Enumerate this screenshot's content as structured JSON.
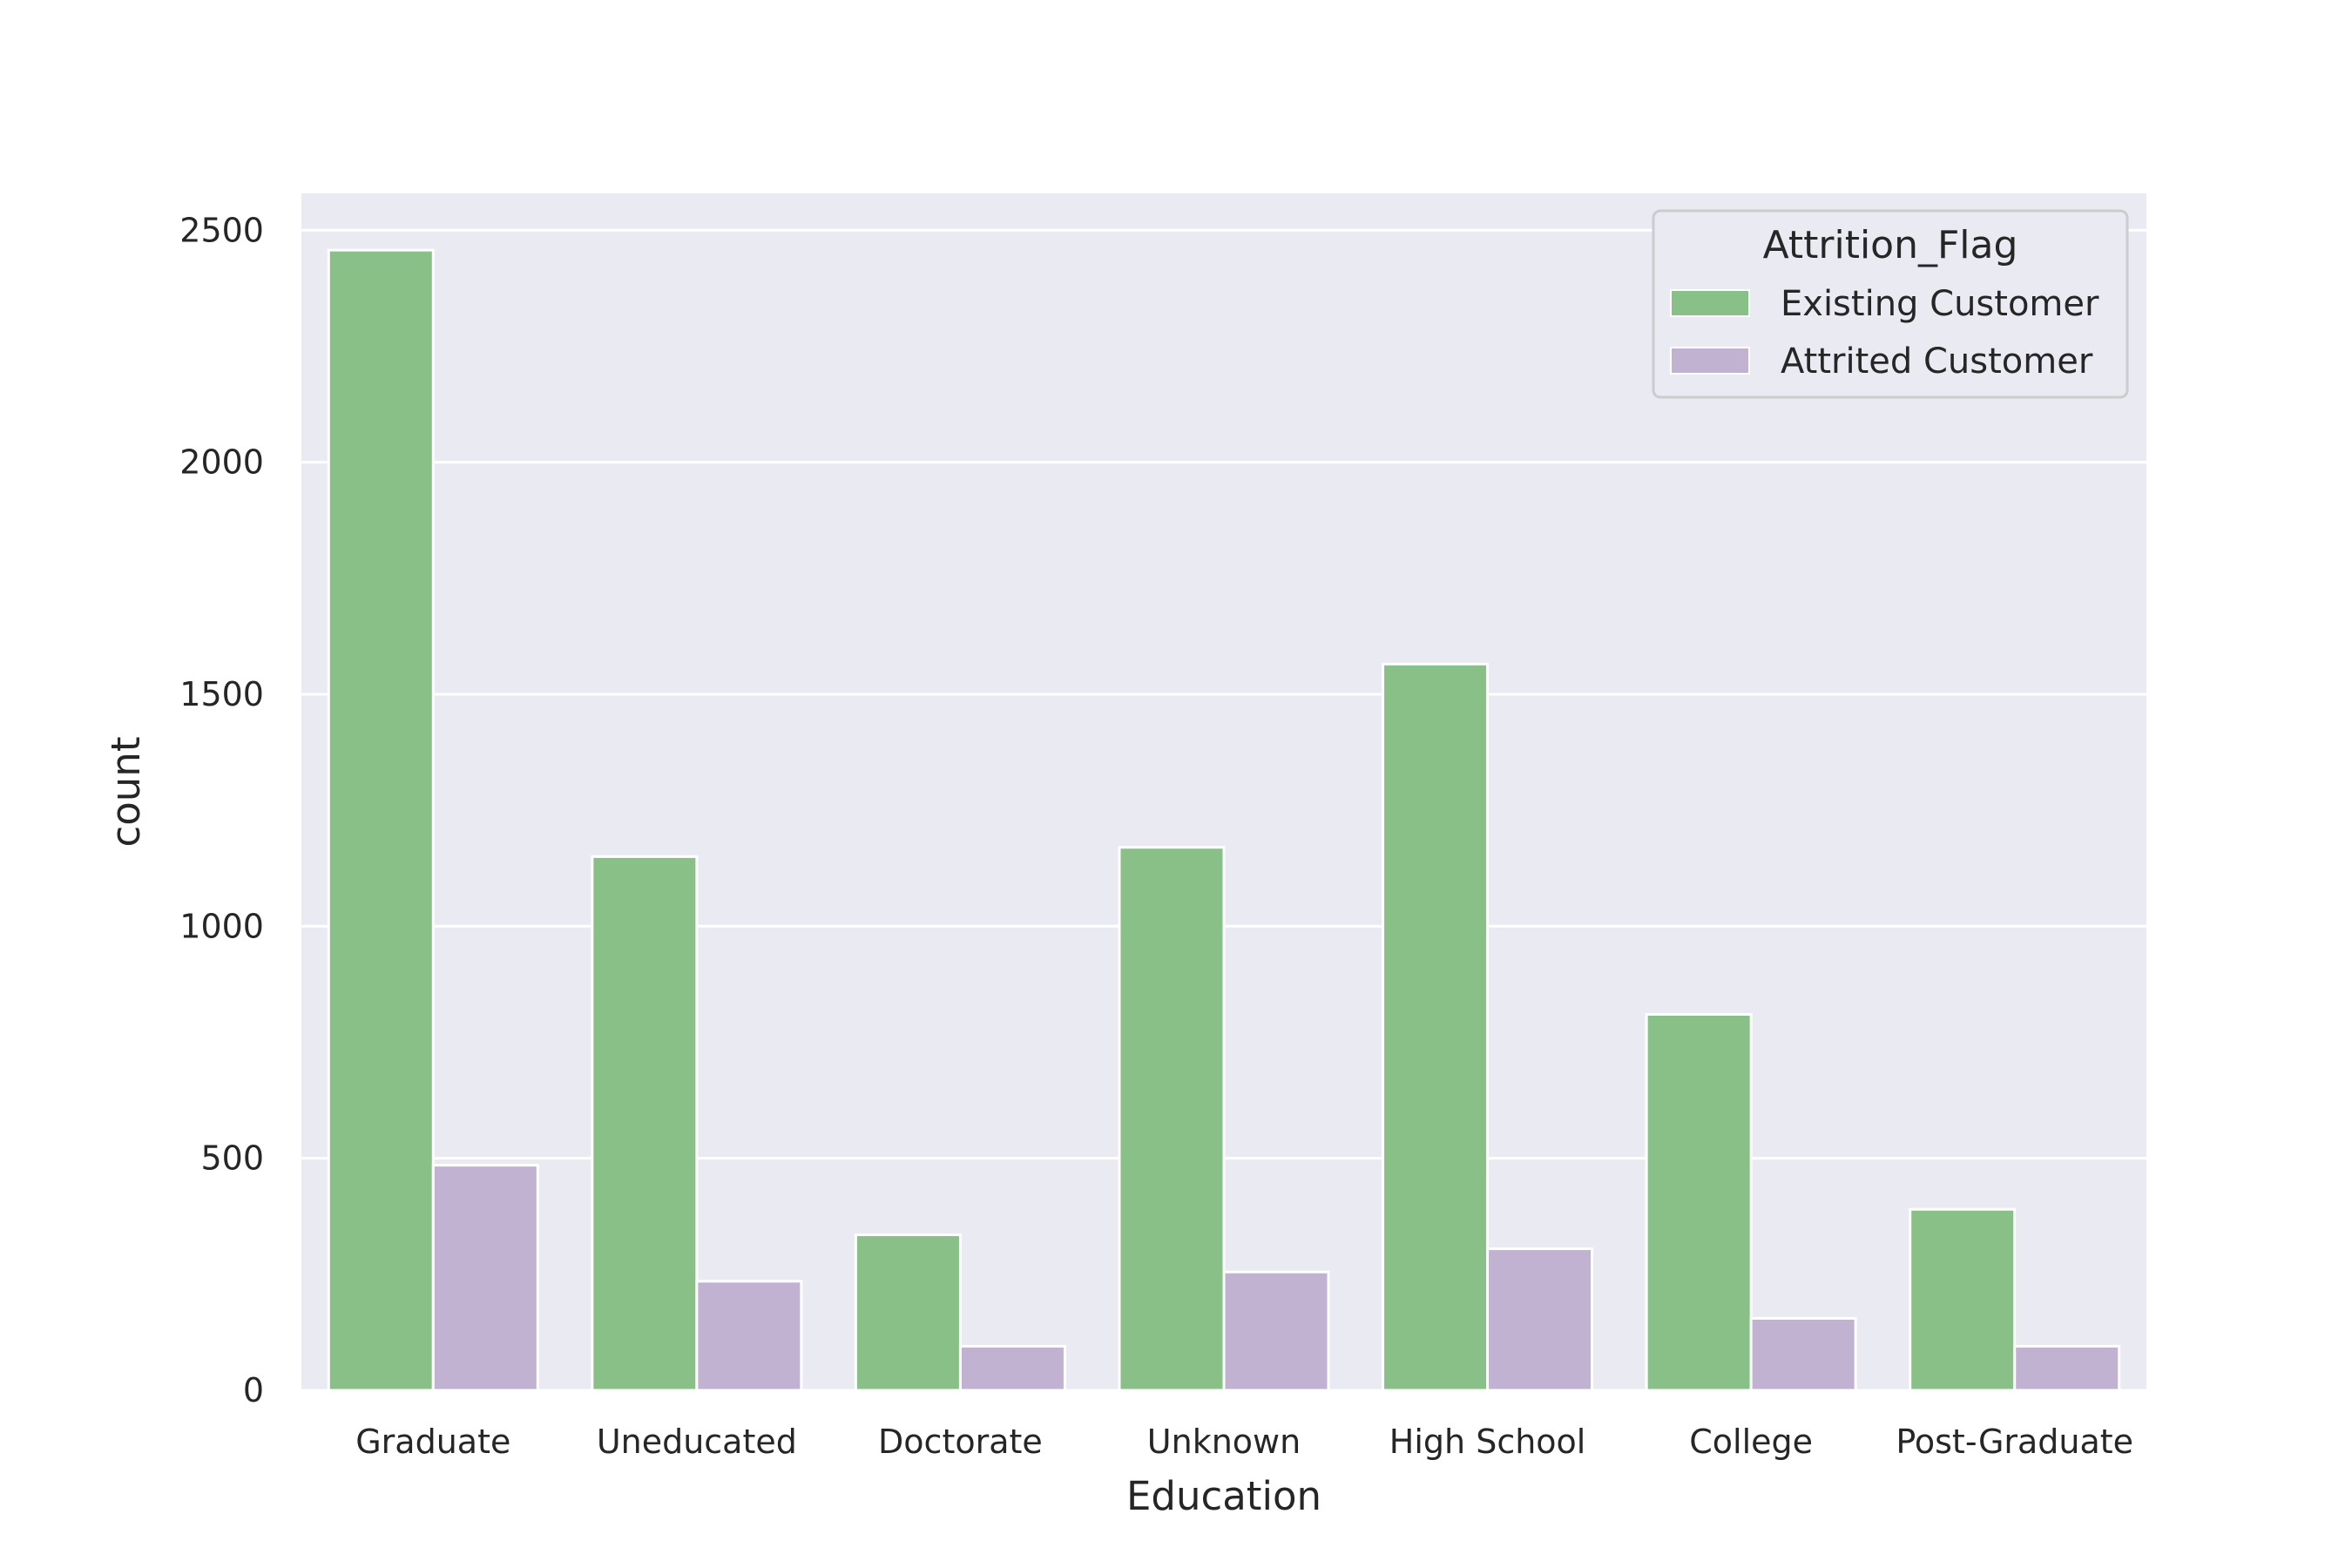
{
  "chart_data": {
    "type": "bar",
    "title": "",
    "xlabel": "Education",
    "ylabel": "count",
    "ylim": [
      0,
      2600
    ],
    "yticks": [
      0,
      500,
      1000,
      1500,
      2000,
      2500
    ],
    "grid": true,
    "categories": [
      "Graduate",
      "Uneducated",
      "Doctorate",
      "Unknown",
      "High School",
      "College",
      "Post-Graduate"
    ],
    "series": [
      {
        "name": "Existing Customer",
        "color": "#88c087",
        "values": [
          2457,
          1150,
          335,
          1170,
          1565,
          810,
          390
        ]
      },
      {
        "name": "Attrited Customer",
        "color": "#c0b2d0",
        "values": [
          485,
          235,
          95,
          255,
          305,
          155,
          95
        ]
      }
    ],
    "legend": {
      "title": "Attrition_Flag",
      "placement": "upper-right"
    },
    "colors": {
      "background": "#eaeaf2",
      "grid": "#ffffff",
      "text": "#262626"
    }
  }
}
